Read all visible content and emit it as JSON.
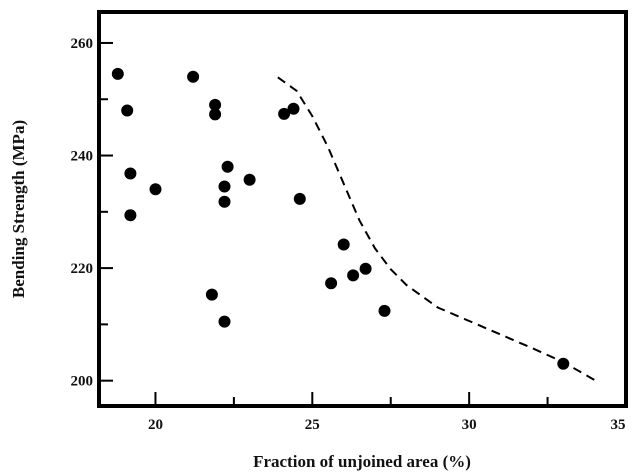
{
  "chart_data": {
    "type": "scatter",
    "xlabel": "Fraction of unjoined area (%)",
    "ylabel": "Bending Strength (MPa)",
    "xlim": [
      18.2,
      35
    ],
    "ylim": [
      195.5,
      265.5
    ],
    "xticks": [
      20,
      25,
      30,
      35
    ],
    "yticks": [
      200,
      220,
      240,
      260
    ],
    "xtick_labels": [
      "20",
      "25",
      "30",
      "35"
    ],
    "ytick_labels": [
      "200",
      "220",
      "240",
      "260"
    ],
    "grid": false,
    "legend": "none",
    "colors": {
      "points": "#000000",
      "frame": "#000000",
      "curve": "#000000"
    },
    "points": [
      {
        "x": 18.8,
        "y": 254.5
      },
      {
        "x": 19.1,
        "y": 248.0
      },
      {
        "x": 19.2,
        "y": 236.8
      },
      {
        "x": 19.2,
        "y": 229.4
      },
      {
        "x": 20.0,
        "y": 234.0
      },
      {
        "x": 21.2,
        "y": 254.0
      },
      {
        "x": 21.9,
        "y": 249.0
      },
      {
        "x": 21.9,
        "y": 247.3
      },
      {
        "x": 22.2,
        "y": 231.8
      },
      {
        "x": 22.2,
        "y": 234.5
      },
      {
        "x": 22.3,
        "y": 238.0
      },
      {
        "x": 21.8,
        "y": 215.3
      },
      {
        "x": 22.2,
        "y": 210.5
      },
      {
        "x": 23.0,
        "y": 235.7
      },
      {
        "x": 24.1,
        "y": 247.4
      },
      {
        "x": 24.4,
        "y": 248.3
      },
      {
        "x": 24.6,
        "y": 232.3
      },
      {
        "x": 26.0,
        "y": 224.2
      },
      {
        "x": 25.6,
        "y": 217.3
      },
      {
        "x": 26.3,
        "y": 218.7
      },
      {
        "x": 26.7,
        "y": 219.9
      },
      {
        "x": 27.3,
        "y": 212.4
      },
      {
        "x": 33.0,
        "y": 203.0
      }
    ],
    "trend_curve": {
      "style": "dashed",
      "points": [
        {
          "x": 23.9,
          "y": 253.9
        },
        {
          "x": 24.5,
          "y": 251.5
        },
        {
          "x": 25.0,
          "y": 247.0
        },
        {
          "x": 25.5,
          "y": 241.5
        },
        {
          "x": 26.0,
          "y": 235.0
        },
        {
          "x": 26.5,
          "y": 228.5
        },
        {
          "x": 27.0,
          "y": 223.5
        },
        {
          "x": 27.5,
          "y": 219.8
        },
        {
          "x": 28.0,
          "y": 217.0
        },
        {
          "x": 29.0,
          "y": 213.0
        },
        {
          "x": 30.0,
          "y": 210.6
        },
        {
          "x": 31.0,
          "y": 208.2
        },
        {
          "x": 32.0,
          "y": 205.8
        },
        {
          "x": 33.0,
          "y": 203.3
        },
        {
          "x": 34.0,
          "y": 200.1
        }
      ]
    }
  }
}
